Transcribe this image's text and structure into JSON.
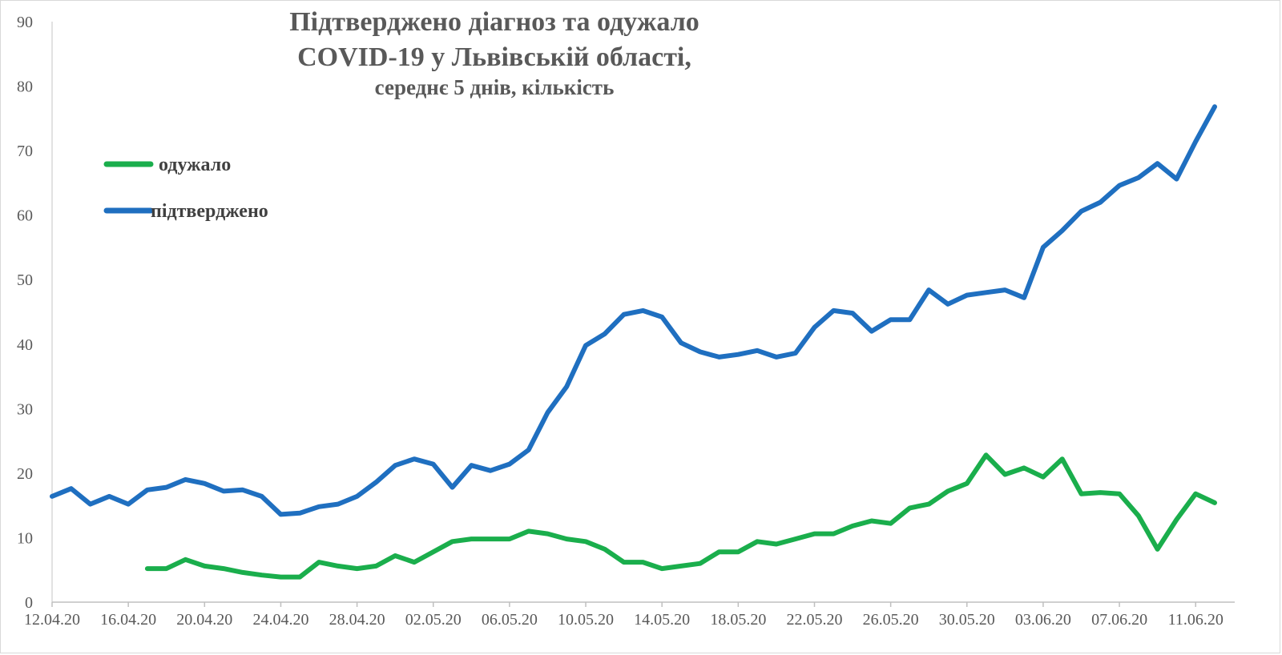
{
  "chart_data": {
    "type": "line",
    "title_lines": [
      "Підтверджено діагноз та одужало",
      "COVID-19 у Львівській області,",
      "середнє 5 днів, кількість"
    ],
    "xlabel": "",
    "ylabel": "",
    "ylim": [
      0,
      90
    ],
    "yticks": [
      0,
      10,
      20,
      30,
      40,
      50,
      60,
      70,
      80,
      90
    ],
    "x_tick_labels": [
      "12.04.20",
      "16.04.20",
      "20.04.20",
      "24.04.20",
      "28.04.20",
      "02.05.20",
      "06.05.20",
      "10.05.20",
      "14.05.20",
      "18.05.20",
      "22.05.20",
      "26.05.20",
      "30.05.20",
      "03.06.20",
      "07.06.20",
      "11.06.20"
    ],
    "x_tick_every": 4,
    "n_points": 62,
    "grid": false,
    "legend_placement": "top-left",
    "series": [
      {
        "name": "одужало",
        "color": "#1aae4c",
        "start_index": 5,
        "values": [
          5.2,
          5.2,
          6.6,
          5.6,
          5.2,
          4.6,
          4.2,
          3.9,
          3.9,
          6.2,
          5.6,
          5.2,
          5.6,
          7.2,
          6.2,
          7.8,
          9.4,
          9.8,
          9.8,
          9.8,
          11.0,
          10.6,
          9.8,
          9.4,
          8.2,
          6.2,
          6.2,
          5.2,
          5.6,
          6.0,
          7.8,
          7.8,
          9.4,
          9.0,
          9.8,
          10.6,
          10.6,
          11.8,
          12.6,
          12.2,
          14.6,
          15.2,
          17.2,
          18.4,
          22.8,
          19.8,
          20.8,
          19.4,
          22.2,
          16.8,
          17.0,
          16.8,
          13.4,
          8.2,
          12.8,
          16.8,
          15.4
        ]
      },
      {
        "name": "підтверджено",
        "color": "#1f6fc0",
        "start_index": 0,
        "values": [
          16.4,
          17.6,
          15.2,
          16.4,
          15.2,
          17.4,
          17.8,
          19.0,
          18.4,
          17.2,
          17.4,
          16.4,
          13.6,
          13.8,
          14.8,
          15.2,
          16.4,
          18.6,
          21.2,
          22.2,
          21.4,
          17.8,
          21.2,
          20.4,
          21.4,
          23.6,
          29.4,
          33.4,
          39.8,
          41.6,
          44.6,
          45.2,
          44.2,
          40.2,
          38.8,
          38.0,
          38.4,
          39.0,
          38.0,
          38.6,
          42.6,
          45.2,
          44.8,
          42.0,
          43.8,
          43.8,
          48.4,
          46.2,
          47.6,
          48.0,
          48.4,
          47.2,
          55.0,
          57.6,
          60.6,
          62.0,
          64.6,
          65.8,
          68.0,
          65.6,
          71.4,
          76.8
        ]
      }
    ]
  }
}
